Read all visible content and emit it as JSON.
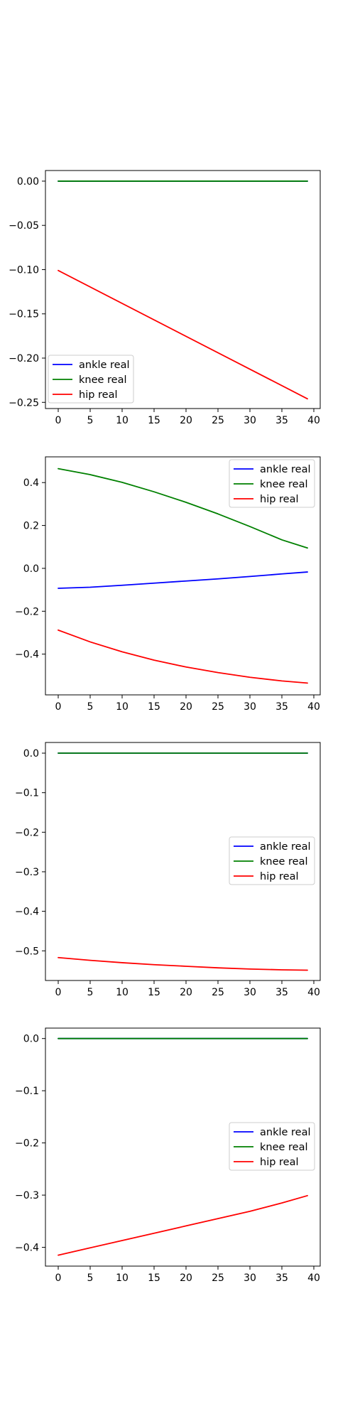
{
  "chart_data": [
    {
      "type": "line",
      "x": [
        0,
        39
      ],
      "xlim": [
        -2,
        41
      ],
      "ylim": [
        -0.257,
        0.012
      ],
      "xticks": [
        0,
        5,
        10,
        15,
        20,
        25,
        30,
        35,
        40
      ],
      "yticks": [
        0.0,
        -0.05,
        -0.1,
        -0.15,
        -0.2,
        -0.25
      ],
      "ytick_labels": [
        "0.00",
        "−0.05",
        "−0.10",
        "−0.15",
        "−0.20",
        "−0.25"
      ],
      "legend_position": "lower left",
      "series": [
        {
          "name": "ankle real",
          "color": "#0000ff",
          "values": [
            0.0,
            0.0
          ],
          "hidden_behind": "knee real"
        },
        {
          "name": "knee real",
          "color": "#008000",
          "values": [
            0.0,
            0.0
          ]
        },
        {
          "name": "hip real",
          "color": "#ff0000",
          "values": [
            -0.101,
            -0.246
          ]
        }
      ]
    },
    {
      "type": "line",
      "x": [
        0,
        5,
        10,
        15,
        20,
        25,
        30,
        35,
        39
      ],
      "xlim": [
        -2,
        41
      ],
      "ylim": [
        -0.59,
        0.52
      ],
      "xticks": [
        0,
        5,
        10,
        15,
        20,
        25,
        30,
        35,
        40
      ],
      "yticks": [
        0.4,
        0.2,
        0.0,
        -0.2,
        -0.4
      ],
      "ytick_labels": [
        "0.4",
        "0.2",
        "0.0",
        "−0.2",
        "−0.4"
      ],
      "legend_position": "upper right",
      "series": [
        {
          "name": "ankle real",
          "color": "#0000ff",
          "values": [
            -0.093,
            -0.088,
            -0.079,
            -0.069,
            -0.059,
            -0.049,
            -0.038,
            -0.026,
            -0.017
          ]
        },
        {
          "name": "knee real",
          "color": "#008000",
          "values": [
            0.465,
            0.437,
            0.401,
            0.357,
            0.308,
            0.254,
            0.195,
            0.133,
            0.095
          ]
        },
        {
          "name": "hip real",
          "color": "#ff0000",
          "values": [
            -0.288,
            -0.343,
            -0.389,
            -0.428,
            -0.46,
            -0.486,
            -0.508,
            -0.525,
            -0.535
          ]
        }
      ]
    },
    {
      "type": "line",
      "x": [
        0,
        5,
        10,
        15,
        20,
        25,
        30,
        35,
        39
      ],
      "xlim": [
        -2,
        41
      ],
      "ylim": [
        -0.575,
        0.027
      ],
      "xticks": [
        0,
        5,
        10,
        15,
        20,
        25,
        30,
        35,
        40
      ],
      "yticks": [
        0.0,
        -0.1,
        -0.2,
        -0.3,
        -0.4,
        -0.5
      ],
      "ytick_labels": [
        "0.0",
        "−0.1",
        "−0.2",
        "−0.3",
        "−0.4",
        "−0.5"
      ],
      "legend_position": "center right",
      "series": [
        {
          "name": "ankle real",
          "color": "#0000ff",
          "values": [
            0.0,
            0.0
          ],
          "x": [
            0,
            39
          ],
          "hidden_behind": "knee real"
        },
        {
          "name": "knee real",
          "color": "#008000",
          "values": [
            0.0,
            0.0
          ],
          "x": [
            0,
            39
          ]
        },
        {
          "name": "hip real",
          "color": "#ff0000",
          "values": [
            -0.517,
            -0.524,
            -0.53,
            -0.535,
            -0.539,
            -0.543,
            -0.546,
            -0.548,
            -0.549
          ]
        }
      ]
    },
    {
      "type": "line",
      "x": [
        0,
        5,
        10,
        15,
        20,
        25,
        30,
        35,
        39
      ],
      "xlim": [
        -2,
        41
      ],
      "ylim": [
        -0.436,
        0.02
      ],
      "xticks": [
        0,
        5,
        10,
        15,
        20,
        25,
        30,
        35,
        40
      ],
      "yticks": [
        0.0,
        -0.1,
        -0.2,
        -0.3,
        -0.4
      ],
      "ytick_labels": [
        "0.0",
        "−0.1",
        "−0.2",
        "−0.3",
        "−0.4"
      ],
      "legend_position": "center right",
      "series": [
        {
          "name": "ankle real",
          "color": "#0000ff",
          "values": [
            0.0,
            0.0
          ],
          "x": [
            0,
            39
          ],
          "hidden_behind": "knee real"
        },
        {
          "name": "knee real",
          "color": "#008000",
          "values": [
            0.0,
            0.0
          ],
          "x": [
            0,
            39
          ]
        },
        {
          "name": "hip real",
          "color": "#ff0000",
          "values": [
            -0.415,
            -0.401,
            -0.387,
            -0.373,
            -0.359,
            -0.345,
            -0.331,
            -0.315,
            -0.301
          ]
        }
      ]
    }
  ]
}
